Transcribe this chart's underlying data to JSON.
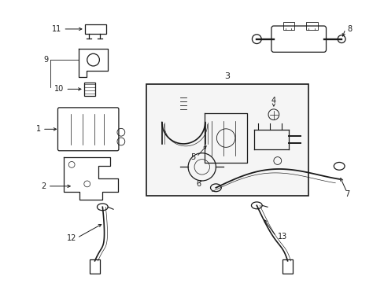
{
  "bg_color": "#ffffff",
  "line_color": "#1a1a1a",
  "lw": 0.9,
  "figsize": [
    4.89,
    3.6
  ],
  "dpi": 100
}
